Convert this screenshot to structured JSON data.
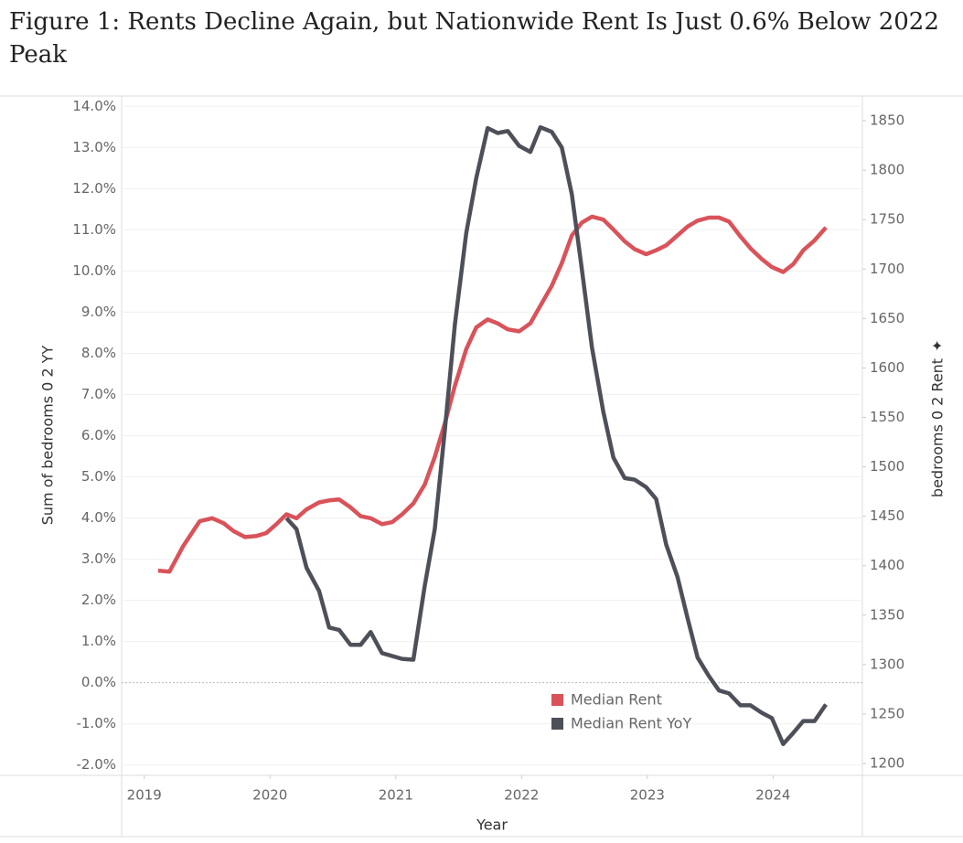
{
  "chart_data": {
    "type": "line",
    "title": "Figure 1: Rents Decline Again, but Nationwide Rent Is Just 0.6% Below 2022 Peak",
    "x_label": "Year",
    "y_label": "Sum of bedrooms 0 2 YY",
    "y2_label": "bedrooms 0 2 Rent",
    "x": [
      2019.11,
      2019.2,
      2019.31,
      2019.44,
      2019.54,
      2019.63,
      2019.71,
      2019.8,
      2019.89,
      2019.97,
      2020.05,
      2020.13,
      2020.21,
      2020.29,
      2020.39,
      2020.47,
      2020.55,
      2020.64,
      2020.72,
      2020.8,
      2020.89,
      2020.97,
      2021.05,
      2021.14,
      2021.23,
      2021.31,
      2021.39,
      2021.47,
      2021.56,
      2021.64,
      2021.73,
      2021.81,
      2021.89,
      2021.98,
      2022.07,
      2022.15,
      2022.24,
      2022.32,
      2022.4,
      2022.48,
      2022.56,
      2022.65,
      2022.73,
      2022.82,
      2022.9,
      2022.99,
      2023.07,
      2023.15,
      2023.24,
      2023.32,
      2023.4,
      2023.49,
      2023.57,
      2023.65,
      2023.74,
      2023.82,
      2023.91,
      2023.99,
      2024.08,
      2024.16,
      2024.24,
      2024.33,
      2024.42
    ],
    "series": [
      {
        "name": "Median Rent",
        "color": "#d9535a",
        "axis": "y2",
        "values": [
          1395,
          1394,
          1420,
          1445,
          1448,
          1443,
          1435,
          1429,
          1430,
          1433,
          1442,
          1452,
          1448,
          1457,
          1464,
          1466,
          1467,
          1459,
          1450,
          1448,
          1442,
          1444,
          1452,
          1463,
          1482,
          1510,
          1544,
          1582,
          1619,
          1641,
          1649,
          1645,
          1639,
          1637,
          1645,
          1663,
          1683,
          1706,
          1734,
          1747,
          1753,
          1750,
          1740,
          1728,
          1720,
          1715,
          1719,
          1724,
          1734,
          1743,
          1749,
          1752,
          1752,
          1748,
          1733,
          1721,
          1710,
          1702,
          1697,
          1705,
          1719,
          1729,
          1742
        ]
      },
      {
        "name": "Median Rent YoY",
        "color": "#4e5059",
        "values": [
          null,
          null,
          null,
          null,
          null,
          null,
          null,
          null,
          null,
          null,
          null,
          4.0,
          3.73,
          2.79,
          2.23,
          1.34,
          1.28,
          0.92,
          0.92,
          1.23,
          0.72,
          0.65,
          0.58,
          0.56,
          2.35,
          3.73,
          6.13,
          8.7,
          10.92,
          12.26,
          13.47,
          13.35,
          13.4,
          13.04,
          12.89,
          13.49,
          13.38,
          13.0,
          11.86,
          10.03,
          8.14,
          6.58,
          5.47,
          4.97,
          4.93,
          4.75,
          4.46,
          3.35,
          2.57,
          1.57,
          0.61,
          0.16,
          -0.19,
          -0.26,
          -0.55,
          -0.55,
          -0.73,
          -0.86,
          -1.49,
          -1.22,
          -0.93,
          -0.93,
          -0.53
        ]
      }
    ],
    "xlim": [
      2018.82,
      2024.71
    ],
    "xticks": [
      2019,
      2020,
      2021,
      2022,
      2023,
      2024
    ],
    "ylim": [
      -2.25,
      14.25
    ],
    "yticks": [
      {
        "value": -2,
        "label": "-2.0%"
      },
      {
        "value": -1,
        "label": "-1.0%"
      },
      {
        "value": 0,
        "label": "0.0%"
      },
      {
        "value": 1,
        "label": "1.0%"
      },
      {
        "value": 2,
        "label": "2.0%"
      },
      {
        "value": 3,
        "label": "3.0%"
      },
      {
        "value": 4,
        "label": "4.0%"
      },
      {
        "value": 5,
        "label": "5.0%"
      },
      {
        "value": 6,
        "label": "6.0%"
      },
      {
        "value": 7,
        "label": "7.0%"
      },
      {
        "value": 8,
        "label": "8.0%"
      },
      {
        "value": 9,
        "label": "9.0%"
      },
      {
        "value": 10,
        "label": "10.0%"
      },
      {
        "value": 11,
        "label": "11.0%"
      },
      {
        "value": 12,
        "label": "12.0%"
      },
      {
        "value": 13,
        "label": "13.0%"
      },
      {
        "value": 14,
        "label": "14.0%"
      }
    ],
    "y2lim": [
      1188,
      1875
    ],
    "y2ticks": [
      1200,
      1250,
      1300,
      1350,
      1400,
      1450,
      1500,
      1550,
      1600,
      1650,
      1700,
      1750,
      1800,
      1850
    ],
    "grid": true,
    "legend": "bottom-right"
  }
}
